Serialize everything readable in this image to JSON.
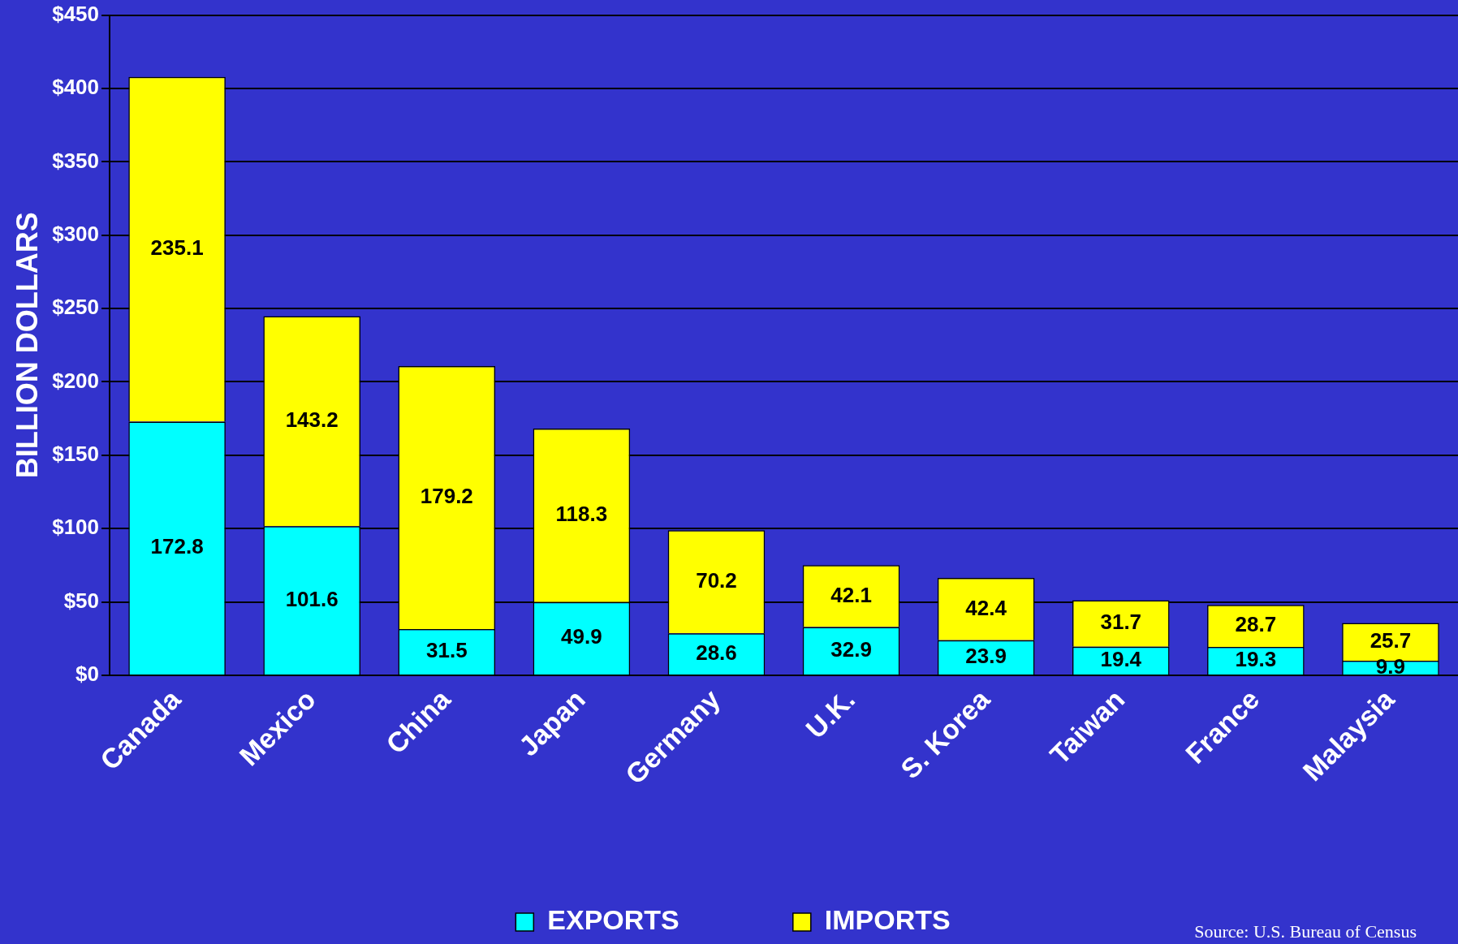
{
  "chart_data": {
    "type": "bar",
    "stacked": true,
    "data_labels": true,
    "grid": "y",
    "legend": "bottom",
    "ylabel": "BILLION DOLLARS",
    "categories": [
      "Canada",
      "Mexico",
      "China",
      "Japan",
      "Germany",
      "U.K.",
      "S. Korea",
      "Taiwan",
      "France",
      "Malaysia"
    ],
    "series": [
      {
        "name": "EXPORTS",
        "color": "#00ffff",
        "values": [
          172.8,
          101.6,
          31.5,
          49.9,
          28.6,
          32.9,
          23.9,
          19.4,
          19.3,
          9.9
        ]
      },
      {
        "name": "IMPORTS",
        "color": "#ffff00",
        "values": [
          235.1,
          143.2,
          179.2,
          118.3,
          70.2,
          42.1,
          42.4,
          31.7,
          28.7,
          25.7
        ]
      }
    ],
    "ylim": [
      0,
      450
    ],
    "yticks": [
      {
        "value": 0,
        "label": "$0"
      },
      {
        "value": 50,
        "label": "$50"
      },
      {
        "value": 100,
        "label": "$100"
      },
      {
        "value": 150,
        "label": "$150"
      },
      {
        "value": 200,
        "label": "$200"
      },
      {
        "value": 250,
        "label": "$250"
      },
      {
        "value": 300,
        "label": "$300"
      },
      {
        "value": 350,
        "label": "$350"
      },
      {
        "value": 400,
        "label": "$400"
      },
      {
        "value": 450,
        "label": "$450"
      }
    ],
    "annotations": [
      "Source: U.S. Bureau of Census"
    ]
  }
}
